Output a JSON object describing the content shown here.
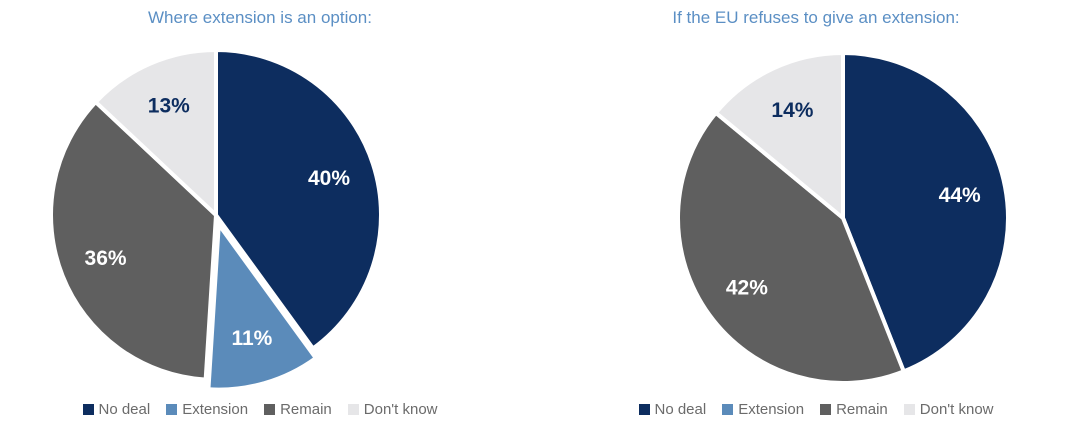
{
  "colors": {
    "No deal": "#0d2d5f",
    "Extension": "#5b8bba",
    "Remain": "#5f5f5f",
    "Don't know": "#e6e6e8"
  },
  "label_colors": {
    "No deal": "#ffffff",
    "Extension": "#ffffff",
    "Remain": "#ffffff",
    "Don't know": "#0d2d5f"
  },
  "chart_data": [
    {
      "type": "pie",
      "title": "Where extension is an option:",
      "categories": [
        "No deal",
        "Extension",
        "Remain",
        "Don't know"
      ],
      "values": [
        40,
        11,
        36,
        13
      ],
      "labels": [
        "40%",
        "11%",
        "36%",
        "13%"
      ],
      "exploded": [
        "Extension"
      ],
      "legend": [
        "No deal",
        "Extension",
        "Remain",
        "Don't know"
      ],
      "legend_position": "bottom"
    },
    {
      "type": "pie",
      "title": "If the EU refuses to give an extension:",
      "categories": [
        "No deal",
        "Remain",
        "Don't know"
      ],
      "values": [
        44,
        42,
        14
      ],
      "labels": [
        "44%",
        "42%",
        "14%"
      ],
      "exploded": [],
      "legend": [
        "No deal",
        "Extension",
        "Remain",
        "Don't know"
      ],
      "legend_position": "bottom"
    }
  ]
}
